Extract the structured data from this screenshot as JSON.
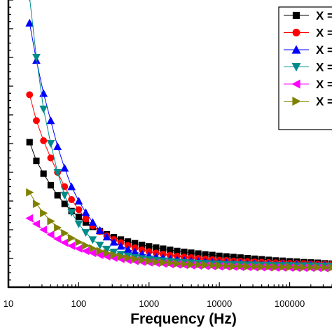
{
  "chart_data": {
    "type": "scatter",
    "xlabel": "Frequency (Hz)",
    "ylabel": "",
    "x_scale": "log",
    "xlim": [
      10,
      400000
    ],
    "ylim": [
      0,
      100
    ],
    "x_ticks": [
      "10",
      "100",
      "1000",
      "10000",
      "100000"
    ],
    "x_tick_values": [
      10,
      100,
      1000,
      10000,
      100000
    ],
    "legend_position": "top-right",
    "grid": false,
    "x": [
      20,
      25,
      31.6,
      40,
      50,
      63,
      79,
      100,
      126,
      158,
      200,
      251,
      316,
      398,
      501,
      631,
      794,
      1000,
      1259,
      1585,
      1995,
      2512,
      3162,
      3981,
      5012,
      6310,
      7943,
      10000,
      12589,
      15849,
      19953,
      25119,
      31623,
      39811,
      50119,
      63096,
      79433,
      100000,
      125893,
      158489,
      199526,
      251189,
      316228,
      398107
    ],
    "series": [
      {
        "name": "X =",
        "color": "#000000",
        "marker": "square",
        "values": [
          50.5,
          44.0,
          39.5,
          35.5,
          32.0,
          29.0,
          26.5,
          24.5,
          22.5,
          21.0,
          19.5,
          18.4,
          17.4,
          16.6,
          15.9,
          15.3,
          14.7,
          14.2,
          13.8,
          13.4,
          13.0,
          12.6,
          12.3,
          12.0,
          11.7,
          11.4,
          11.2,
          10.9,
          10.7,
          10.5,
          10.3,
          10.1,
          9.9,
          9.7,
          9.5,
          9.3,
          9.2,
          9.0,
          8.9,
          8.7,
          8.6,
          8.5,
          8.3,
          8.2
        ]
      },
      {
        "name": "X =",
        "color": "#ff0000",
        "marker": "circle",
        "values": [
          67.0,
          58.0,
          51.0,
          45.0,
          40.0,
          35.0,
          30.5,
          27.0,
          23.8,
          21.4,
          19.4,
          17.9,
          16.6,
          15.5,
          14.5,
          13.7,
          13.0,
          12.4,
          11.9,
          11.5,
          11.1,
          10.8,
          10.5,
          10.3,
          10.0,
          9.8,
          9.6,
          9.4,
          9.3,
          9.1,
          9.0,
          8.9,
          8.8,
          8.7,
          8.6,
          8.5,
          8.4,
          8.3,
          8.2,
          8.2,
          8.1,
          8.0,
          8.0,
          7.9
        ]
      },
      {
        "name": "X =",
        "color": "#0000ff",
        "marker": "triangle-up",
        "values": [
          92.0,
          79.0,
          67.5,
          58.0,
          49.0,
          41.5,
          35.0,
          30.0,
          26.0,
          22.6,
          19.8,
          17.5,
          15.7,
          14.3,
          13.2,
          12.3,
          11.6,
          11.0,
          10.6,
          10.2,
          9.9,
          9.6,
          9.4,
          9.2,
          9.0,
          8.9,
          8.7,
          8.6,
          8.5,
          8.4,
          8.3,
          8.2,
          8.1,
          8.0,
          8.0,
          7.9,
          7.9,
          7.8,
          7.8,
          7.7,
          7.7,
          7.6,
          7.6,
          7.6
        ]
      },
      {
        "name": "X =",
        "color": "#008b8b",
        "marker": "triangle-down",
        "values": [
          101.0,
          80.0,
          62.0,
          50.0,
          40.0,
          32.0,
          26.0,
          22.0,
          19.0,
          16.5,
          14.6,
          13.2,
          12.2,
          11.4,
          10.8,
          10.3,
          9.9,
          9.6,
          9.3,
          9.1,
          8.9,
          8.7,
          8.6,
          8.4,
          8.3,
          8.2,
          8.1,
          8.0,
          7.9,
          7.9,
          7.8,
          7.7,
          7.7,
          7.6,
          7.6,
          7.5,
          7.5,
          7.5,
          7.4,
          7.4,
          7.4,
          7.3,
          7.3,
          7.3
        ]
      },
      {
        "name": "X =",
        "color": "#ff00ff",
        "marker": "triangle-left",
        "values": [
          24.0,
          22.0,
          20.0,
          18.3,
          16.8,
          15.5,
          14.4,
          13.4,
          12.6,
          11.9,
          11.2,
          10.7,
          10.2,
          9.8,
          9.4,
          9.1,
          8.8,
          8.6,
          8.4,
          8.2,
          8.0,
          7.9,
          7.7,
          7.6,
          7.5,
          7.4,
          7.3,
          7.2,
          7.2,
          7.1,
          7.0,
          7.0,
          6.9,
          6.9,
          6.9,
          6.8,
          6.8,
          6.8,
          6.7,
          6.7,
          6.7,
          6.7,
          6.6,
          6.6
        ]
      },
      {
        "name": "X =",
        "color": "#808000",
        "marker": "triangle-right",
        "values": [
          33.0,
          29.0,
          25.8,
          23.0,
          20.7,
          18.8,
          17.1,
          15.7,
          14.5,
          13.5,
          12.6,
          11.9,
          11.2,
          10.7,
          10.2,
          9.8,
          9.4,
          9.1,
          8.8,
          8.6,
          8.4,
          8.2,
          8.0,
          7.9,
          7.8,
          7.7,
          7.6,
          7.5,
          7.4,
          7.3,
          7.3,
          7.2,
          7.2,
          7.1,
          7.1,
          7.0,
          7.0,
          7.0,
          6.9,
          6.9,
          6.9,
          6.9,
          6.8,
          6.8
        ]
      }
    ]
  }
}
